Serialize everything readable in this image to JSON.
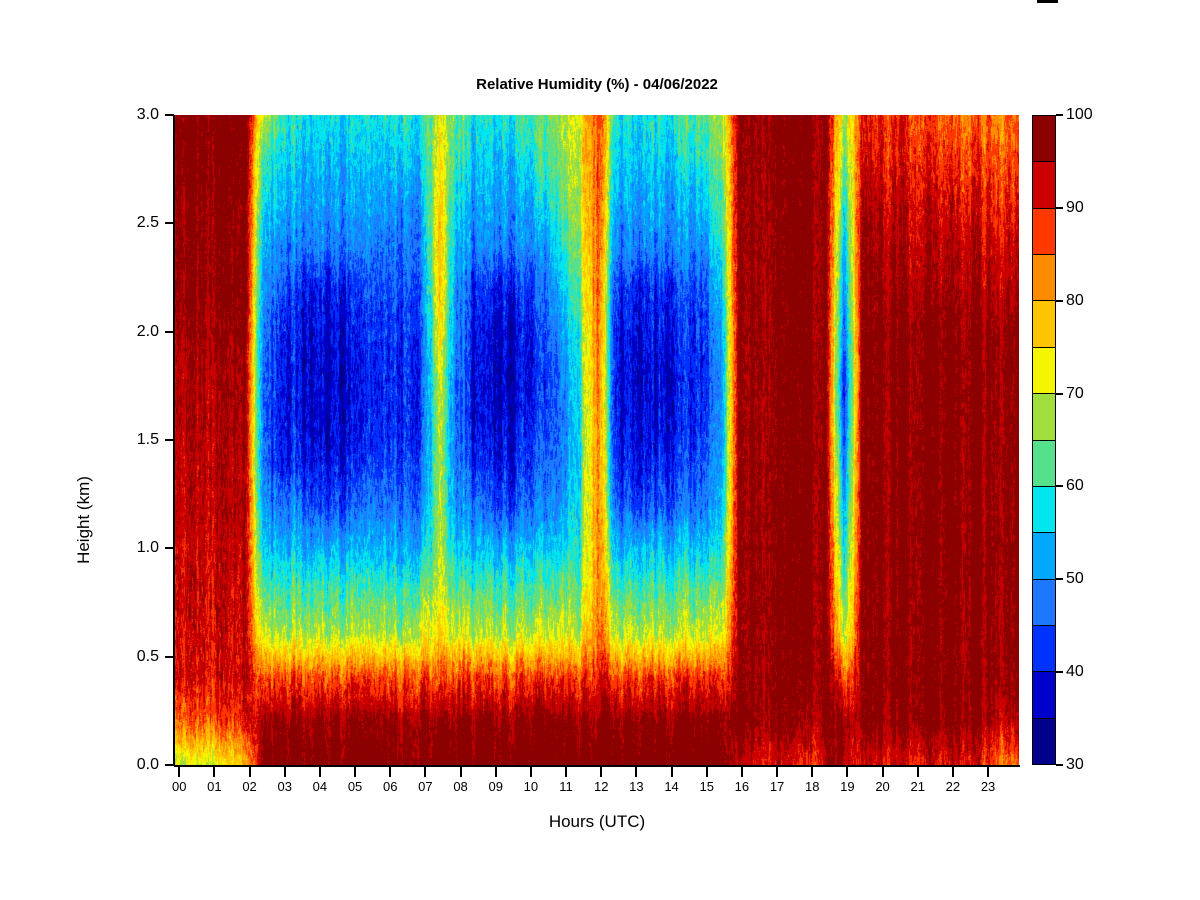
{
  "chart_data": {
    "type": "heatmap",
    "title": "Relative Humidity (%) - 04/06/2022",
    "xlabel": "Hours (UTC)",
    "ylabel": "Height (km)",
    "x_range_hours": [
      0,
      24
    ],
    "y_range_km": [
      0.0,
      3.0
    ],
    "x_ticks": [
      "00",
      "01",
      "02",
      "03",
      "04",
      "05",
      "06",
      "07",
      "08",
      "09",
      "10",
      "11",
      "12",
      "13",
      "14",
      "15",
      "16",
      "17",
      "18",
      "19",
      "20",
      "21",
      "22",
      "23"
    ],
    "y_ticks": [
      "3.0",
      "2.5",
      "2.0",
      "1.5",
      "1.0",
      "0.5",
      "0.0"
    ],
    "grid_off": true,
    "colorbar": {
      "min": 30,
      "max": 100,
      "step": 5,
      "tick_labels": [
        "30",
        "40",
        "50",
        "60",
        "70",
        "80",
        "90",
        "100"
      ],
      "colors_low_to_high": [
        "#00008B",
        "#0000CD",
        "#0032FF",
        "#1E78FF",
        "#00A8FF",
        "#00E5EE",
        "#55E08C",
        "#9FDE3C",
        "#F5F500",
        "#FFC400",
        "#FF8C00",
        "#FF3800",
        "#CD0000",
        "#8B0000"
      ],
      "position": "right"
    },
    "grid_definition": {
      "hours_utc": [
        0,
        0.5,
        1,
        1.5,
        2,
        2.5,
        3,
        3.5,
        4,
        4.5,
        5,
        5.5,
        6,
        6.5,
        7,
        7.5,
        8,
        8.5,
        9,
        9.5,
        10,
        10.5,
        11,
        11.5,
        12,
        12.5,
        13,
        13.5,
        14,
        14.5,
        15,
        15.5,
        16,
        16.5,
        17,
        17.5,
        18,
        18.5,
        19,
        19.5,
        20,
        20.5,
        21,
        21.5,
        22,
        22.5,
        23,
        23.5
      ],
      "heights_km": [
        3.0,
        2.8,
        2.6,
        2.4,
        2.2,
        2.0,
        1.8,
        1.6,
        1.4,
        1.2,
        1.0,
        0.8,
        0.6,
        0.4,
        0.2,
        0.0
      ],
      "note_rows": "values_percent rows ordered top (3.0 km) to bottom (0.0 km)"
    },
    "values_percent": [
      [
        97,
        97,
        97,
        97,
        97,
        70,
        62,
        58,
        58,
        58,
        58,
        58,
        60,
        62,
        58,
        73,
        64,
        58,
        58,
        60,
        61,
        63,
        67,
        73,
        89,
        60,
        58,
        58,
        60,
        61,
        62,
        66,
        94,
        97,
        97,
        97,
        97,
        96,
        66,
        90,
        89,
        89,
        88,
        86,
        84,
        84,
        85,
        84
      ],
      [
        97,
        97,
        97,
        97,
        97,
        60,
        58,
        55,
        55,
        55,
        55,
        55,
        55,
        58,
        55,
        75,
        60,
        55,
        55,
        55,
        58,
        60,
        65,
        72,
        89,
        56,
        55,
        55,
        55,
        57,
        58,
        63,
        94,
        97,
        97,
        97,
        97,
        96,
        62,
        92,
        91,
        91,
        90,
        89,
        88,
        87,
        88,
        87
      ],
      [
        96,
        96,
        96,
        96,
        96,
        56,
        55,
        52,
        52,
        52,
        52,
        52,
        52,
        52,
        52,
        77,
        56,
        52,
        52,
        52,
        52,
        56,
        62,
        70,
        89,
        52,
        52,
        52,
        52,
        52,
        54,
        60,
        94,
        97,
        97,
        97,
        97,
        96,
        57,
        94,
        93,
        93,
        92,
        92,
        91,
        91,
        91,
        90
      ],
      [
        96,
        96,
        96,
        96,
        96,
        53,
        49,
        49,
        49,
        49,
        49,
        49,
        49,
        49,
        49,
        79,
        52,
        49,
        49,
        49,
        49,
        49,
        58,
        68,
        88,
        49,
        49,
        49,
        49,
        49,
        49,
        57,
        94,
        97,
        97,
        97,
        97,
        96,
        52,
        96,
        95,
        95,
        94,
        94,
        94,
        94,
        93,
        93
      ],
      [
        96,
        96,
        96,
        96,
        96,
        50,
        46,
        42,
        41,
        41,
        42,
        44,
        46,
        46,
        46,
        78,
        50,
        42,
        41,
        41,
        42,
        46,
        54,
        65,
        88,
        44,
        41,
        41,
        42,
        43,
        43,
        53,
        94,
        97,
        97,
        97,
        97,
        96,
        48,
        96,
        96,
        96,
        95,
        95,
        95,
        95,
        95,
        95
      ],
      [
        95,
        95,
        95,
        95,
        95,
        48,
        41,
        40,
        39,
        39,
        40,
        42,
        44,
        44,
        44,
        75,
        48,
        40,
        38,
        38,
        40,
        44,
        50,
        62,
        87,
        41,
        39,
        39,
        40,
        41,
        41,
        50,
        94,
        97,
        97,
        97,
        97,
        96,
        44,
        96,
        97,
        97,
        97,
        97,
        97,
        97,
        97,
        97
      ],
      [
        94,
        94,
        94,
        94,
        94,
        46,
        41,
        39,
        38,
        38,
        38,
        40,
        43,
        43,
        43,
        72,
        46,
        39,
        37,
        37,
        39,
        41,
        47,
        60,
        87,
        40,
        38,
        38,
        38,
        40,
        40,
        48,
        94,
        97,
        97,
        97,
        97,
        96,
        40,
        96,
        97,
        97,
        97,
        97,
        97,
        97,
        97,
        97
      ],
      [
        94,
        94,
        94,
        94,
        94,
        46,
        41,
        40,
        38,
        38,
        39,
        41,
        43,
        43,
        43,
        70,
        46,
        39,
        38,
        38,
        40,
        43,
        46,
        59,
        86,
        40,
        38,
        38,
        39,
        40,
        41,
        48,
        94,
        97,
        97,
        97,
        97,
        96,
        41,
        96,
        97,
        97,
        97,
        97,
        97,
        97,
        97,
        97
      ],
      [
        93,
        93,
        93,
        93,
        93,
        47,
        41,
        42,
        40,
        40,
        41,
        43,
        45,
        45,
        45,
        69,
        47,
        41,
        40,
        40,
        42,
        45,
        47,
        59,
        86,
        42,
        40,
        40,
        41,
        42,
        43,
        49,
        94,
        97,
        97,
        97,
        97,
        96,
        45,
        96,
        97,
        97,
        97,
        97,
        97,
        97,
        97,
        97
      ],
      [
        93,
        93,
        93,
        93,
        93,
        50,
        48,
        48,
        44,
        44,
        45,
        48,
        48,
        48,
        48,
        69,
        50,
        48,
        44,
        44,
        46,
        48,
        50,
        60,
        86,
        46,
        44,
        44,
        45,
        46,
        46,
        52,
        94,
        97,
        97,
        97,
        97,
        96,
        50,
        96,
        97,
        97,
        97,
        97,
        97,
        97,
        97,
        97
      ],
      [
        92,
        92,
        92,
        92,
        92,
        55,
        54,
        54,
        54,
        54,
        54,
        54,
        54,
        54,
        54,
        69,
        55,
        54,
        54,
        54,
        54,
        54,
        55,
        62,
        85,
        53,
        54,
        54,
        54,
        54,
        54,
        56,
        94,
        97,
        97,
        97,
        97,
        96,
        55,
        96,
        97,
        97,
        97,
        97,
        97,
        97,
        97,
        97
      ],
      [
        92,
        92,
        92,
        92,
        92,
        62,
        62,
        62,
        62,
        62,
        62,
        62,
        63,
        62,
        64,
        71,
        63,
        62,
        62,
        62,
        62,
        62,
        63,
        65,
        85,
        62,
        62,
        62,
        62,
        62,
        62,
        63,
        94,
        97,
        97,
        97,
        97,
        96,
        61,
        96,
        97,
        97,
        97,
        97,
        97,
        97,
        97,
        97
      ],
      [
        91,
        91,
        91,
        91,
        91,
        70,
        69,
        69,
        69,
        69,
        69,
        69,
        70,
        69,
        71,
        76,
        70,
        69,
        69,
        69,
        69,
        69,
        70,
        71,
        86,
        69,
        69,
        69,
        69,
        69,
        69,
        70,
        94,
        97,
        97,
        97,
        97,
        96,
        67,
        96,
        97,
        97,
        97,
        97,
        97,
        97,
        97,
        97
      ],
      [
        91,
        91,
        91,
        91,
        91,
        86,
        88,
        88,
        88,
        88,
        88,
        88,
        88,
        88,
        88,
        87,
        88,
        88,
        88,
        88,
        88,
        88,
        88,
        88,
        91,
        88,
        88,
        88,
        88,
        88,
        88,
        87,
        95,
        97,
        97,
        97,
        97,
        96,
        85,
        96,
        97,
        97,
        97,
        97,
        97,
        97,
        97,
        97
      ],
      [
        85,
        85,
        85,
        86,
        88,
        96,
        97,
        97,
        97,
        97,
        97,
        97,
        97,
        97,
        97,
        97,
        97,
        97,
        97,
        97,
        97,
        97,
        97,
        97,
        97,
        97,
        97,
        97,
        97,
        97,
        97,
        97,
        96,
        97,
        97,
        97,
        94,
        96,
        96,
        96,
        97,
        97,
        97,
        97,
        97,
        97,
        96,
        94
      ],
      [
        68,
        70,
        70,
        72,
        76,
        98,
        99,
        99,
        99,
        99,
        99,
        99,
        99,
        99,
        99,
        99,
        99,
        99,
        99,
        99,
        99,
        99,
        99,
        99,
        99,
        99,
        99,
        99,
        99,
        99,
        99,
        98,
        93,
        92,
        92,
        91,
        88,
        92,
        95,
        92,
        92,
        92,
        91,
        91,
        91,
        92,
        90,
        85
      ]
    ]
  },
  "decor": {
    "top_edge_artifact_color": "#000000",
    "background_color": "#FFFFFF",
    "axis_color": "#000000"
  }
}
